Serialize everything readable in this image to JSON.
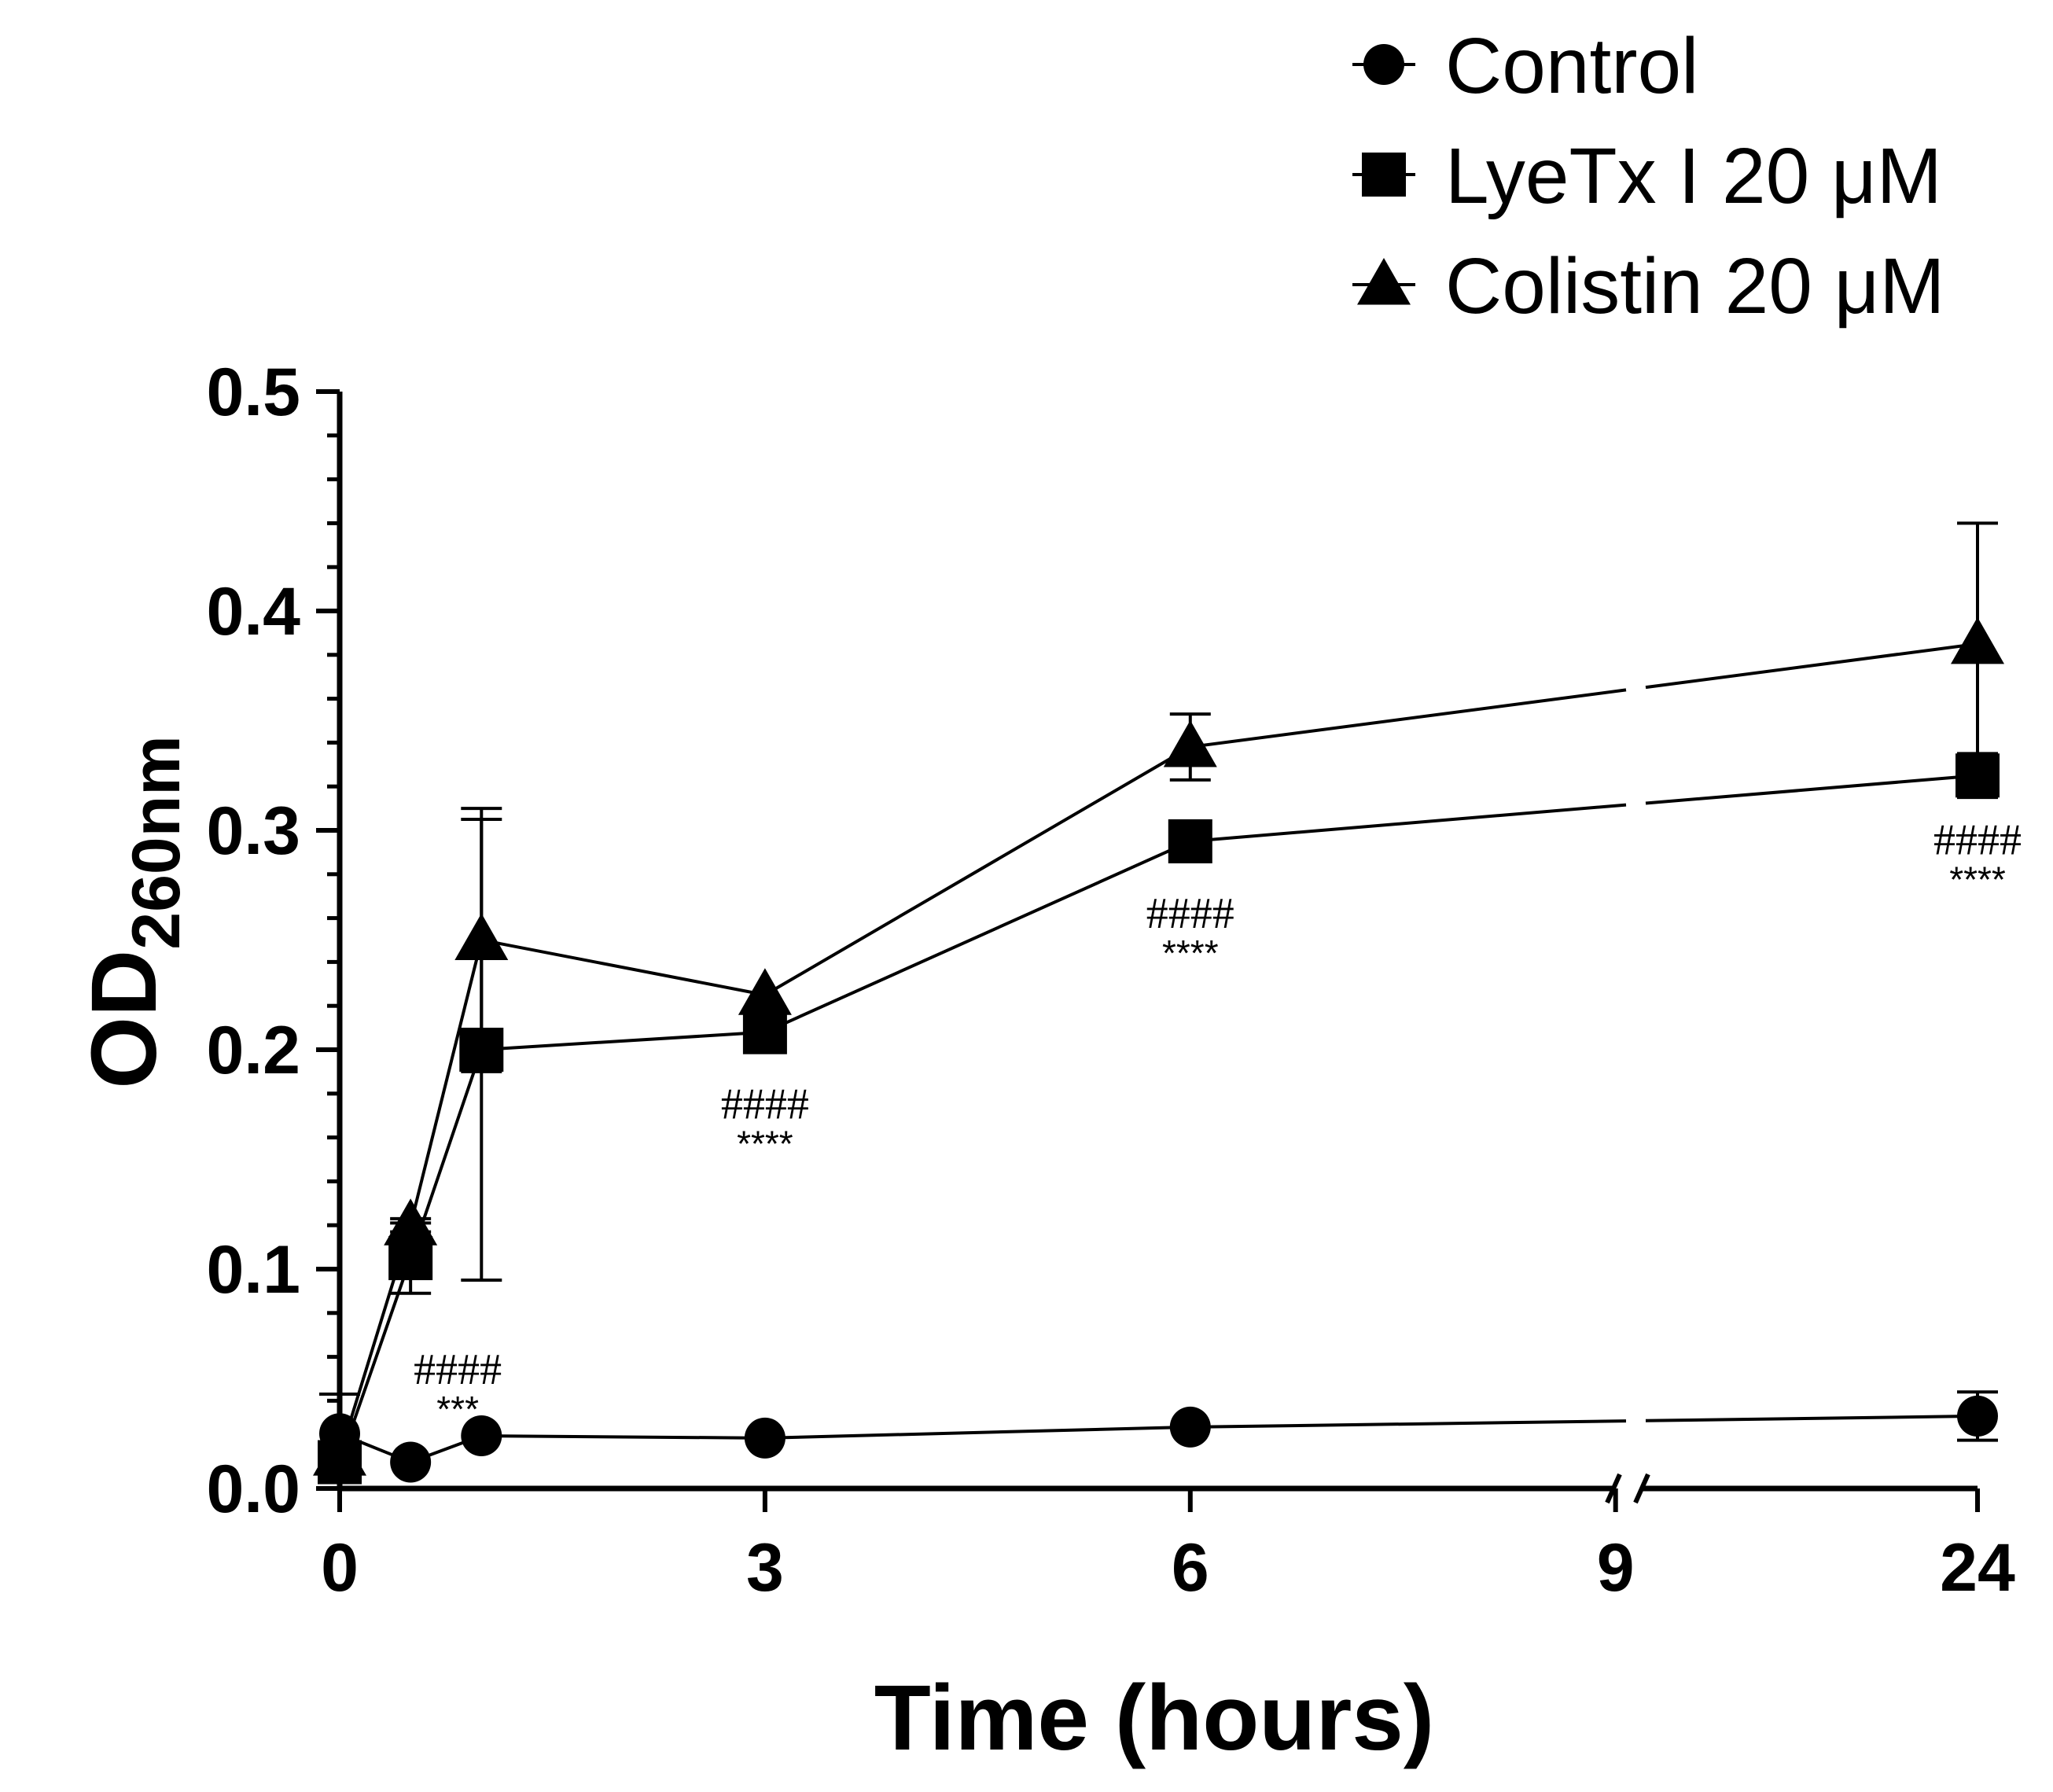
{
  "chart_data": {
    "type": "line",
    "xlabel": "Time (hours)",
    "ylabel_main": "OD",
    "ylabel_sub": "260nm",
    "ylim": [
      0,
      0.5
    ],
    "y_ticks": [
      "0.0",
      "0.1",
      "0.2",
      "0.3",
      "0.4",
      "0.5"
    ],
    "x_ticks": [
      "0",
      "3",
      "6",
      "9",
      "24"
    ],
    "x_axis_note": "broken axis between 9 and 24 h",
    "legend_position": "top-right",
    "series": [
      {
        "name": "Control",
        "marker": "circle",
        "points": [
          {
            "x": 0,
            "y": 0.025,
            "err": 0.018
          },
          {
            "x": 0.5,
            "y": 0.012,
            "err": 0
          },
          {
            "x": 1,
            "y": 0.024,
            "err": 0
          },
          {
            "x": 3,
            "y": 0.023,
            "err": 0
          },
          {
            "x": 6,
            "y": 0.028,
            "err": 0
          },
          {
            "x": 24,
            "y": 0.033,
            "err": 0.011
          }
        ]
      },
      {
        "name": "LyeTx I 20 μM",
        "marker": "square",
        "points": [
          {
            "x": 0,
            "y": 0.012,
            "err": 0
          },
          {
            "x": 0.5,
            "y": 0.105,
            "err": 0.016
          },
          {
            "x": 1,
            "y": 0.2,
            "err": 0.105
          },
          {
            "x": 3,
            "y": 0.208,
            "err": 0.005
          },
          {
            "x": 6,
            "y": 0.295,
            "err": 0
          },
          {
            "x": 24,
            "y": 0.325,
            "err": 0.01
          }
        ]
      },
      {
        "name": "Colistin 20 μM",
        "marker": "triangle",
        "points": [
          {
            "x": 0,
            "y": 0.015,
            "err": 0
          },
          {
            "x": 0.5,
            "y": 0.12,
            "err": 0.003
          },
          {
            "x": 1,
            "y": 0.25,
            "err": 0.06
          },
          {
            "x": 3,
            "y": 0.225,
            "err": 0
          },
          {
            "x": 6,
            "y": 0.338,
            "err": 0.015
          },
          {
            "x": 24,
            "y": 0.385,
            "err": 0.055
          }
        ]
      }
    ],
    "annotations": [
      {
        "x": 0.5,
        "y": 0.105,
        "hash": "####",
        "stars": "***"
      },
      {
        "x": 3,
        "y": 0.208,
        "hash": "####",
        "stars": "****"
      },
      {
        "x": 6,
        "y": 0.295,
        "hash": "####",
        "stars": "****"
      },
      {
        "x": 24,
        "y": 0.325,
        "hash": "####",
        "stars": "****"
      }
    ]
  }
}
